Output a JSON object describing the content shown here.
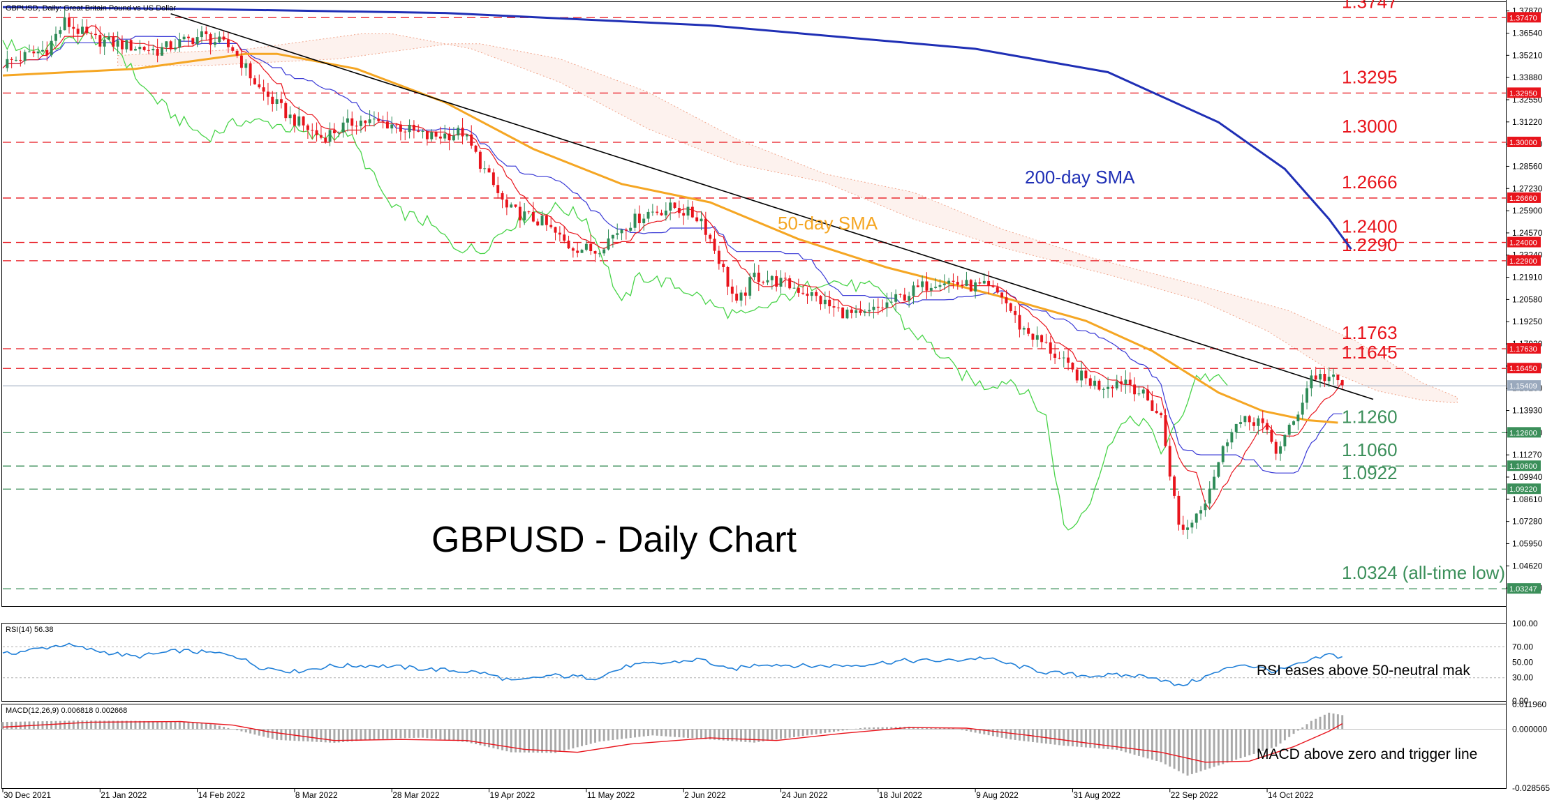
{
  "colors": {
    "up_candle": "#2e8b57",
    "down_candle": "#e8141c",
    "red_level": "#e8141c",
    "green_level": "#3b8f5a",
    "sma50": "#f5a623",
    "sma200": "#1f2fb5",
    "tenkan": "#e8141c",
    "kijun": "#3a3ad6",
    "chikou": "#49d449",
    "cloud": "#f0a48a",
    "trendline": "#000000",
    "rsi": "#1f7fd8",
    "macd_hist": "#a9a9a9",
    "macd_signal": "#e8141c",
    "price_box": "#9aa9bd"
  },
  "chart_data": [
    {
      "type": "candlestick",
      "title": "GBPUSD, Daily:  Great Britain Pound vs US Dollar",
      "main_label": "GBPUSD - Daily Chart",
      "ylim": [
        1.0225,
        1.384
      ],
      "y_ticks": [
        "1.37870",
        "1.36540",
        "1.35210",
        "1.33880",
        "1.32550",
        "1.31220",
        "1.29890",
        "1.28560",
        "1.27230",
        "1.25900",
        "1.24570",
        "1.23240",
        "1.21910",
        "1.20580",
        "1.19250",
        "1.17920",
        "1.16590",
        "1.15260",
        "1.13930",
        "1.12600",
        "1.11270",
        "1.09940",
        "1.08610",
        "1.07280",
        "1.05950",
        "1.04620",
        "1.03290"
      ],
      "x_dates": [
        "30 Dec 2021",
        "21 Jan 2022",
        "14 Feb 2022",
        "8 Mar 2022",
        "28 Mar 2022",
        "19 Apr 2022",
        "11 May 2022",
        "2 Jun 2022",
        "24 Jun 2022",
        "18 Jul 2022",
        "9 Aug 2022",
        "31 Aug 2022",
        "22 Sep 2022",
        "14 Oct 2022"
      ],
      "current_price": "1.15409",
      "levels": [
        {
          "label": "1.3747",
          "box": "1.37470",
          "value": 1.3747,
          "kind": "resistance"
        },
        {
          "label": "1.3295",
          "box": "1.32950",
          "value": 1.3295,
          "kind": "resistance"
        },
        {
          "label": "1.3000",
          "box": "1.30000",
          "value": 1.3,
          "kind": "resistance"
        },
        {
          "label": "1.2666",
          "box": "1.26660",
          "value": 1.2666,
          "kind": "resistance"
        },
        {
          "label": "1.2400",
          "box": "1.24000",
          "value": 1.24,
          "kind": "resistance"
        },
        {
          "label": "1.2290",
          "box": "1.22900",
          "value": 1.229,
          "kind": "resistance"
        },
        {
          "label": "1.1763",
          "box": "1.17630",
          "value": 1.1763,
          "kind": "resistance"
        },
        {
          "label": "1.1645",
          "box": "1.16450",
          "value": 1.1645,
          "kind": "resistance"
        },
        {
          "label": "1.1260",
          "box": "1.12600",
          "value": 1.126,
          "kind": "support"
        },
        {
          "label": "1.1060",
          "box": "1.10600",
          "value": 1.106,
          "kind": "support"
        },
        {
          "label": "1.0922",
          "box": "1.09220",
          "value": 1.0922,
          "kind": "support"
        },
        {
          "label": "1.0324 (all-time low)",
          "box": "1.03247",
          "value": 1.03247,
          "kind": "support"
        }
      ],
      "annotations": {
        "sma50": "50-day SMA",
        "sma200": "200-day SMA"
      },
      "series": [
        {
          "name": "200-day SMA",
          "points": [
            [
              0,
              1.381
            ],
            [
              40,
              1.38
            ],
            [
              100,
              1.3775
            ],
            [
              160,
              1.37
            ],
            [
              220,
              1.356
            ],
            [
              250,
              1.342
            ],
            [
              275,
              1.312
            ],
            [
              290,
              1.284
            ],
            [
              300,
              1.254
            ],
            [
              305,
              1.236
            ]
          ]
        },
        {
          "name": "50-day SMA",
          "points": [
            [
              0,
              1.34
            ],
            [
              30,
              1.344
            ],
            [
              55,
              1.353
            ],
            [
              62,
              1.353
            ],
            [
              80,
              1.344
            ],
            [
              100,
              1.324
            ],
            [
              120,
              1.296
            ],
            [
              140,
              1.275
            ],
            [
              160,
              1.264
            ],
            [
              180,
              1.242
            ],
            [
              200,
              1.225
            ],
            [
              225,
              1.208
            ],
            [
              245,
              1.193
            ],
            [
              260,
              1.175
            ],
            [
              275,
              1.15
            ],
            [
              285,
              1.139
            ],
            [
              295,
              1.1335
            ],
            [
              302,
              1.132
            ]
          ]
        },
        {
          "name": "Trendline",
          "points": [
            [
              38,
              1.377
            ],
            [
              310,
              1.146
            ]
          ]
        },
        {
          "name": "Close",
          "points": [
            [
              0,
              1.347
            ],
            [
              10,
              1.356
            ],
            [
              14,
              1.372
            ],
            [
              20,
              1.362
            ],
            [
              28,
              1.358
            ],
            [
              35,
              1.355
            ],
            [
              45,
              1.364
            ],
            [
              52,
              1.356
            ],
            [
              58,
              1.332
            ],
            [
              65,
              1.315
            ],
            [
              72,
              1.303
            ],
            [
              80,
              1.313
            ],
            [
              88,
              1.311
            ],
            [
              96,
              1.303
            ],
            [
              104,
              1.306
            ],
            [
              114,
              1.26
            ],
            [
              122,
              1.252
            ],
            [
              128,
              1.238
            ],
            [
              134,
              1.235
            ],
            [
              140,
              1.249
            ],
            [
              146,
              1.258
            ],
            [
              152,
              1.261
            ],
            [
              158,
              1.254
            ],
            [
              162,
              1.23
            ],
            [
              166,
              1.202
            ],
            [
              170,
              1.22
            ],
            [
              176,
              1.216
            ],
            [
              182,
              1.21
            ],
            [
              188,
              1.2
            ],
            [
              194,
              1.195
            ],
            [
              200,
              1.203
            ],
            [
              206,
              1.211
            ],
            [
              212,
              1.218
            ],
            [
              218,
              1.214
            ],
            [
              222,
              1.213
            ],
            [
              226,
              1.208
            ],
            [
              230,
              1.19
            ],
            [
              236,
              1.178
            ],
            [
              242,
              1.162
            ],
            [
              248,
              1.154
            ],
            [
              254,
              1.158
            ],
            [
              258,
              1.148
            ],
            [
              262,
              1.135
            ],
            [
              266,
              1.07
            ],
            [
              268,
              1.069
            ],
            [
              272,
              1.087
            ],
            [
              278,
              1.13
            ],
            [
              284,
              1.134
            ],
            [
              288,
              1.115
            ],
            [
              292,
              1.132
            ],
            [
              296,
              1.16
            ],
            [
              300,
              1.159
            ],
            [
              303,
              1.1541
            ]
          ]
        }
      ]
    },
    {
      "type": "line",
      "title": "RSI(14) 56.38",
      "note": "RSI eases above 50-neutral mak",
      "ylim": [
        0,
        100
      ],
      "y_ticks": [
        "100.00",
        "70.00",
        "50.00",
        "30.00",
        "0.00"
      ],
      "series": [
        {
          "name": "RSI(14)",
          "points": [
            [
              0,
              60
            ],
            [
              14,
              73
            ],
            [
              20,
              66
            ],
            [
              30,
              57
            ],
            [
              40,
              65
            ],
            [
              52,
              60
            ],
            [
              58,
              44
            ],
            [
              66,
              38
            ],
            [
              74,
              45
            ],
            [
              84,
              46
            ],
            [
              94,
              42
            ],
            [
              108,
              37
            ],
            [
              116,
              25
            ],
            [
              124,
              33
            ],
            [
              134,
              30
            ],
            [
              142,
              46
            ],
            [
              150,
              49
            ],
            [
              158,
              54
            ],
            [
              164,
              40
            ],
            [
              172,
              48
            ],
            [
              182,
              45
            ],
            [
              192,
              46
            ],
            [
              204,
              52
            ],
            [
              214,
              52
            ],
            [
              222,
              56
            ],
            [
              228,
              47
            ],
            [
              236,
              37
            ],
            [
              244,
              33
            ],
            [
              252,
              33
            ],
            [
              260,
              32
            ],
            [
              266,
              19
            ],
            [
              270,
              27
            ],
            [
              280,
              48
            ],
            [
              288,
              38
            ],
            [
              296,
              52
            ],
            [
              300,
              60
            ],
            [
              303,
              56.38
            ]
          ]
        }
      ]
    },
    {
      "type": "bar",
      "title": "MACD(12,26,9) 0.006818 0.002668",
      "note": "MACD above zero and trigger line",
      "ylim": [
        -0.0286,
        0.012
      ],
      "y_ticks": [
        "0.011960",
        "0.000000",
        "-0.028565"
      ],
      "series": [
        {
          "name": "MACD",
          "points": [
            [
              0,
              0.0035
            ],
            [
              18,
              0.0042
            ],
            [
              30,
              0.004
            ],
            [
              40,
              0.0036
            ],
            [
              47,
              0.0028
            ],
            [
              52,
              0.0
            ],
            [
              62,
              -0.0052
            ],
            [
              75,
              -0.0066
            ],
            [
              85,
              -0.0048
            ],
            [
              95,
              -0.0041
            ],
            [
              105,
              -0.0063
            ],
            [
              115,
              -0.0112
            ],
            [
              125,
              -0.0115
            ],
            [
              135,
              -0.006
            ],
            [
              147,
              -0.003
            ],
            [
              160,
              -0.005
            ],
            [
              170,
              -0.0065
            ],
            [
              182,
              -0.003
            ],
            [
              195,
              0.0008
            ],
            [
              205,
              0.0012
            ],
            [
              215,
              0.0004
            ],
            [
              228,
              -0.005
            ],
            [
              240,
              -0.008
            ],
            [
              252,
              -0.01
            ],
            [
              262,
              -0.016
            ],
            [
              268,
              -0.0225
            ],
            [
              278,
              -0.0155
            ],
            [
              288,
              -0.0085
            ],
            [
              296,
              0.004
            ],
            [
              300,
              0.008
            ],
            [
              303,
              0.006818
            ]
          ]
        },
        {
          "name": "Signal",
          "points": [
            [
              0,
              0.001
            ],
            [
              20,
              0.0034
            ],
            [
              40,
              0.0037
            ],
            [
              52,
              0.002
            ],
            [
              60,
              -0.0012
            ],
            [
              75,
              -0.0055
            ],
            [
              90,
              -0.005
            ],
            [
              105,
              -0.0055
            ],
            [
              118,
              -0.0098
            ],
            [
              130,
              -0.0112
            ],
            [
              142,
              -0.0072
            ],
            [
              160,
              -0.0042
            ],
            [
              175,
              -0.0055
            ],
            [
              190,
              -0.002
            ],
            [
              205,
              0.0008
            ],
            [
              218,
              0.0005
            ],
            [
              232,
              -0.003
            ],
            [
              248,
              -0.0075
            ],
            [
              262,
              -0.0112
            ],
            [
              272,
              -0.016
            ],
            [
              282,
              -0.0155
            ],
            [
              292,
              -0.0085
            ],
            [
              300,
              -0.001
            ],
            [
              303,
              0.002668
            ]
          ]
        }
      ]
    }
  ]
}
